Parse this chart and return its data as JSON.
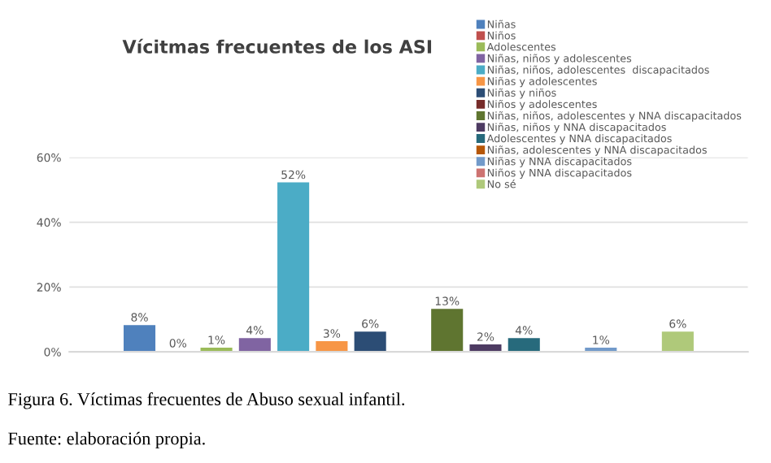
{
  "chart_data": {
    "type": "bar",
    "title": "Vícitmas frecuentes de los ASI",
    "categories": [
      null
    ],
    "series": [
      {
        "name": "Niñas",
        "color": "#4f81bd",
        "values": [
          8
        ],
        "value_labels": [
          "8%"
        ]
      },
      {
        "name": "Niños",
        "color": "#c0504d",
        "values": [
          0
        ],
        "value_labels": [
          "0%"
        ]
      },
      {
        "name": "Adolescentes",
        "color": "#9bbb59",
        "values": [
          1
        ],
        "value_labels": [
          "1%"
        ]
      },
      {
        "name": "Niñas, niños y adolescentes",
        "color": "#8064a2",
        "values": [
          4
        ],
        "value_labels": [
          "4%"
        ]
      },
      {
        "name": "Niñas, niños, adolescentes  discapacitados",
        "color": "#4bacc6",
        "values": [
          52
        ],
        "value_labels": [
          "52%"
        ]
      },
      {
        "name": "Niñas y adolescentes",
        "color": "#f79646",
        "values": [
          3
        ],
        "value_labels": [
          "3%"
        ]
      },
      {
        "name": "Niñas y niños",
        "color": "#2c4d75",
        "values": [
          6
        ],
        "value_labels": [
          "6%"
        ]
      },
      {
        "name": "Niños y adolescentes",
        "color": "#772c2a",
        "values": [
          null
        ],
        "value_labels": [
          null
        ]
      },
      {
        "name": "Niñas, niños, adolescentes y NNA discapacitados",
        "color": "#5f7530",
        "values": [
          13
        ],
        "value_labels": [
          "13%"
        ]
      },
      {
        "name": "Niñas, niños y NNA discapacitados",
        "color": "#4d3b62",
        "values": [
          2
        ],
        "value_labels": [
          "2%"
        ]
      },
      {
        "name": "Adolescentes y NNA discapacitados",
        "color": "#276a7c",
        "values": [
          4
        ],
        "value_labels": [
          "4%"
        ]
      },
      {
        "name": "Niñas, adolescentes y NNA discapacitados",
        "color": "#b65708",
        "values": [
          null
        ],
        "value_labels": [
          null
        ]
      },
      {
        "name": "Niñas y NNA discapacitados",
        "color": "#729aca",
        "values": [
          1
        ],
        "value_labels": [
          "1%"
        ]
      },
      {
        "name": "Niños y NNA discapacitados",
        "color": "#cd7371",
        "values": [
          null
        ],
        "value_labels": [
          null
        ]
      },
      {
        "name": "No sé",
        "color": "#afc97a",
        "values": [
          6
        ],
        "value_labels": [
          "6%"
        ]
      }
    ],
    "ylim": [
      0,
      60
    ],
    "yticks": [
      {
        "value": 0,
        "label": "0%"
      },
      {
        "value": 20,
        "label": "20%"
      },
      {
        "value": 40,
        "label": "40%"
      },
      {
        "value": 60,
        "label": "60%"
      }
    ],
    "grid": "y",
    "legend": "top right",
    "annotations": [
      "Figura 6. Víctimas frecuentes de Abuso sexual infantil.",
      "Fuente: elaboración propia."
    ]
  }
}
